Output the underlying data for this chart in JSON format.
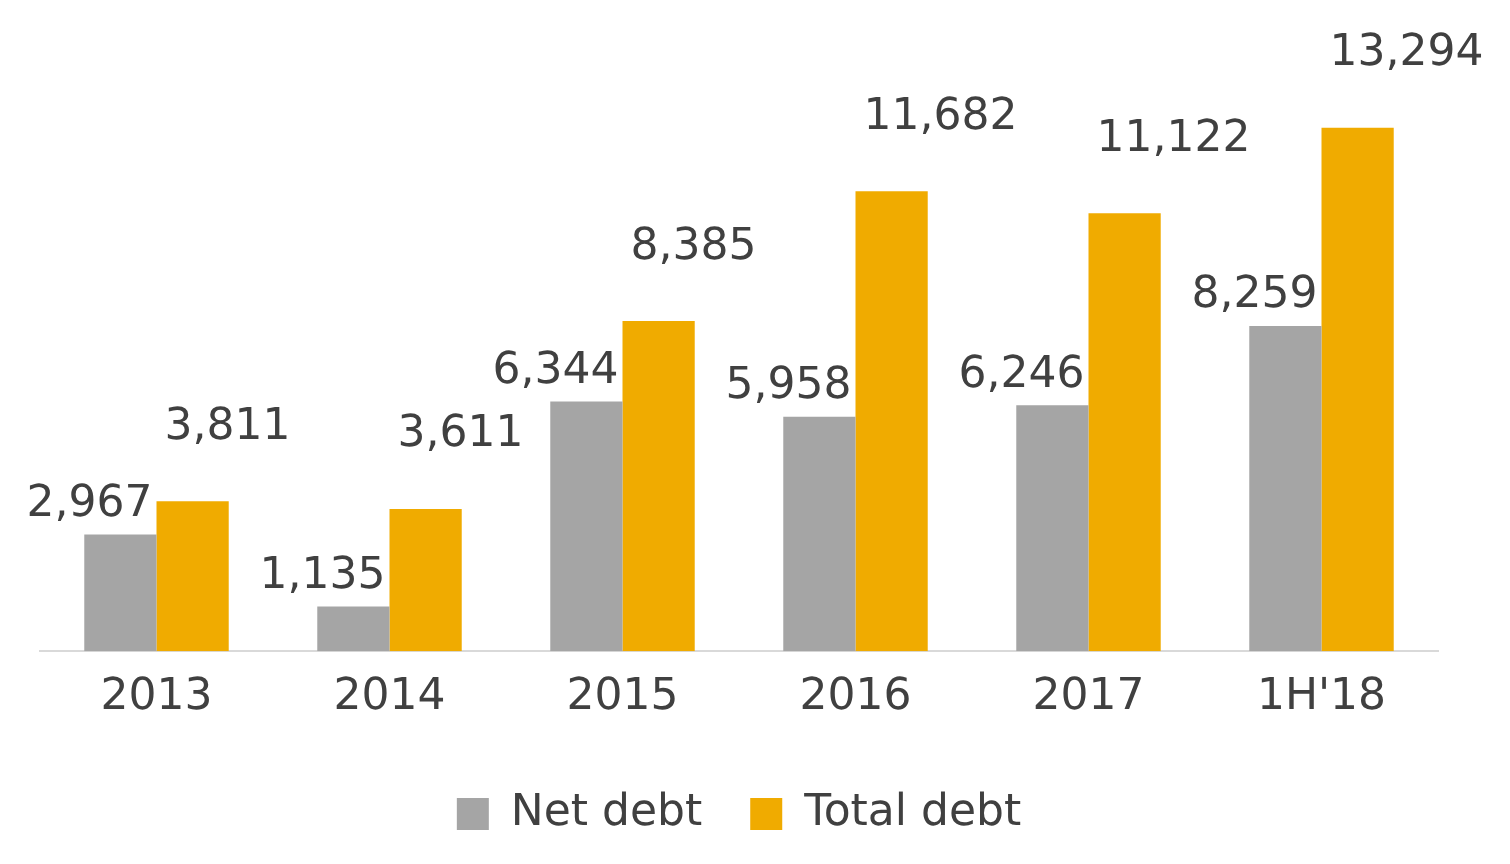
{
  "chart_data": {
    "type": "bar",
    "categories": [
      "2013",
      "2014",
      "2015",
      "2016",
      "2017",
      "1H'18"
    ],
    "series": [
      {
        "name": "Net debt",
        "color": "#a5a5a5",
        "values": [
          2967,
          1135,
          6344,
          5958,
          6246,
          8259
        ],
        "value_labels": [
          "2,967",
          "1,135",
          "6,344",
          "5,958",
          "6,246",
          "8,259"
        ]
      },
      {
        "name": "Total debt",
        "color": "#f0ab00",
        "values": [
          3811,
          3611,
          8385,
          11682,
          11122,
          13294
        ],
        "value_labels": [
          "3,811",
          "3,611",
          "8,385",
          "11,682",
          "11,122",
          "13,294"
        ]
      }
    ],
    "grid": false,
    "legend": "bottom"
  }
}
